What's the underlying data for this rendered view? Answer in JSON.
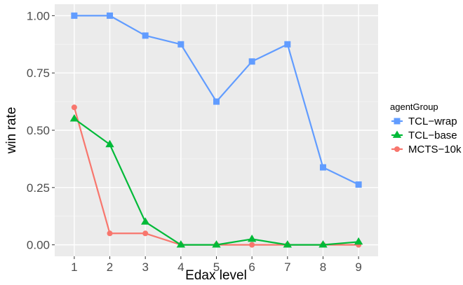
{
  "chart_data": {
    "type": "line",
    "title": "",
    "xlabel": "Edax level",
    "ylabel": "win rate",
    "x": [
      1,
      2,
      3,
      4,
      5,
      6,
      7,
      8,
      9
    ],
    "xlim": [
      0.45,
      9.55
    ],
    "ylim": [
      -0.05,
      1.05
    ],
    "xticks": [
      "1",
      "2",
      "3",
      "4",
      "5",
      "6",
      "7",
      "8",
      "9"
    ],
    "yticks": [
      0,
      0.25,
      0.5,
      0.75,
      1.0
    ],
    "ytick_labels": [
      "0.00",
      "0.25",
      "0.50",
      "0.75",
      "1.00"
    ],
    "grid": true,
    "legend": {
      "title": "agentGroup",
      "placement": "right"
    },
    "series": [
      {
        "name": "TCL−wrap",
        "color": "#619CFF",
        "marker": "square",
        "values": [
          1.0,
          1.0,
          0.913,
          0.875,
          0.625,
          0.8,
          0.875,
          0.338,
          0.263
        ]
      },
      {
        "name": "TCL−base",
        "color": "#00BA38",
        "marker": "triangle",
        "values": [
          0.55,
          0.438,
          0.1,
          0.0,
          0.0,
          0.025,
          0.0,
          0.0,
          0.013
        ]
      },
      {
        "name": "MCTS−10k",
        "color": "#F8766D",
        "marker": "circle",
        "values": [
          0.6,
          0.05,
          0.05,
          0.0,
          0.0,
          0.0,
          0.0,
          0.0,
          0.0
        ]
      }
    ]
  }
}
